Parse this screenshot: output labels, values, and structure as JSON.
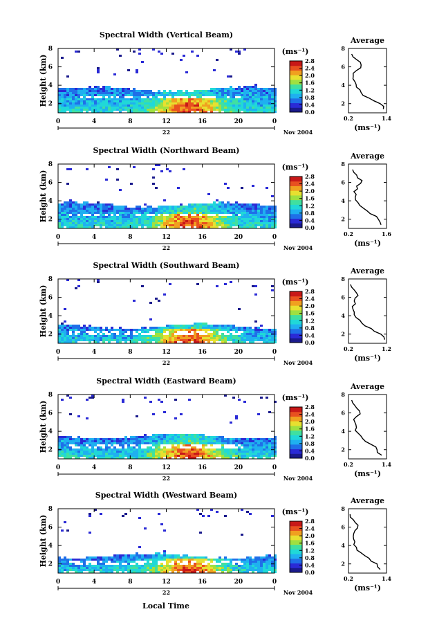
{
  "figure": {
    "xlabel": "Local Time",
    "date_label": "22",
    "month_label": "Nov 2004",
    "ylabel": "Height (km)",
    "colorbar_unit": "(ms⁻¹)",
    "colorbar_ticks": [
      "0.0",
      "0.4",
      "0.8",
      "1.2",
      "1.6",
      "2.0",
      "2.4",
      "2.8"
    ],
    "colormap": [
      "#1a1a8c",
      "#2a2ad6",
      "#1f6fe8",
      "#1fb0f0",
      "#20d8d8",
      "#40e0a0",
      "#a0e040",
      "#e8e030",
      "#f0a020",
      "#e85020",
      "#c81818"
    ],
    "profile_title": "Average",
    "profile_xlabel": "(ms⁻¹)"
  },
  "chart_data": [
    {
      "type": "heatmap",
      "title": "Spectral Width (Vertical Beam)",
      "xlabel": "Local Time",
      "ylabel": "Height (km)",
      "x_ticks": [
        "0",
        "4",
        "8",
        "12",
        "16",
        "20",
        "0"
      ],
      "xlim": [
        0,
        24
      ],
      "ylim": [
        1,
        8
      ],
      "y_ticks": [
        "2",
        "4",
        "6",
        "8"
      ],
      "colorbar_range": [
        0.0,
        2.8
      ],
      "profile": {
        "title": "Average",
        "xlim": [
          0.2,
          1.4
        ],
        "x_ticks": [
          "0.2",
          "1.4"
        ],
        "ylim": [
          1,
          8
        ],
        "y_ticks": [
          "2",
          "4",
          "6",
          "8"
        ],
        "heights": [
          1.4,
          2.0,
          2.6,
          3.2,
          3.8,
          4.4,
          5.0,
          5.6,
          6.2,
          6.8,
          7.4
        ],
        "values": [
          1.3,
          1.2,
          0.85,
          0.6,
          0.45,
          0.4,
          0.35,
          0.45,
          0.6,
          0.45,
          0.3
        ]
      }
    },
    {
      "type": "heatmap",
      "title": "Spectral Width (Northward Beam)",
      "xlabel": "Local Time",
      "ylabel": "Height (km)",
      "x_ticks": [
        "0",
        "4",
        "8",
        "12",
        "16",
        "20",
        "0"
      ],
      "xlim": [
        0,
        24
      ],
      "ylim": [
        1,
        8
      ],
      "y_ticks": [
        "2",
        "4",
        "6",
        "8"
      ],
      "colorbar_range": [
        0.0,
        2.8
      ],
      "profile": {
        "title": "Average",
        "xlim": [
          0.2,
          1.6
        ],
        "x_ticks": [
          "0.2",
          "1.6"
        ],
        "ylim": [
          1,
          8
        ],
        "y_ticks": [
          "2",
          "4",
          "6",
          "8"
        ],
        "heights": [
          1.4,
          2.0,
          2.6,
          3.2,
          3.8,
          4.4,
          5.0,
          5.6,
          6.2,
          6.8,
          7.4
        ],
        "values": [
          1.4,
          1.3,
          1.0,
          0.75,
          0.55,
          0.45,
          0.4,
          0.5,
          0.7,
          0.5,
          0.35
        ]
      }
    },
    {
      "type": "heatmap",
      "title": "Spectral Width (Southward Beam)",
      "xlabel": "Local Time",
      "ylabel": "Height (km)",
      "x_ticks": [
        "0",
        "4",
        "8",
        "12",
        "16",
        "20",
        "0"
      ],
      "xlim": [
        0,
        24
      ],
      "ylim": [
        1,
        8
      ],
      "y_ticks": [
        "2",
        "4",
        "6",
        "8"
      ],
      "colorbar_range": [
        0.0,
        2.8
      ],
      "profile": {
        "title": "Average",
        "xlim": [
          0.2,
          1.2
        ],
        "x_ticks": [
          "0.2",
          "1.2"
        ],
        "ylim": [
          1,
          8
        ],
        "y_ticks": [
          "2",
          "4",
          "6",
          "8"
        ],
        "heights": [
          1.4,
          2.0,
          2.6,
          3.2,
          3.8,
          4.4,
          5.0,
          5.6,
          6.2,
          6.8,
          7.4
        ],
        "values": [
          1.15,
          1.05,
          0.8,
          0.55,
          0.4,
          0.35,
          0.3,
          0.35,
          0.45,
          0.35,
          0.25
        ]
      }
    },
    {
      "type": "heatmap",
      "title": "Spectral Width (Eastward Beam)",
      "xlabel": "Local Time",
      "ylabel": "Height (km)",
      "x_ticks": [
        "0",
        "4",
        "8",
        "12",
        "16",
        "20",
        "0"
      ],
      "xlim": [
        0,
        24
      ],
      "ylim": [
        1,
        8
      ],
      "y_ticks": [
        "2",
        "4",
        "6",
        "8"
      ],
      "colorbar_range": [
        0.0,
        2.8
      ],
      "profile": {
        "title": "Average",
        "xlim": [
          0.2,
          1.4
        ],
        "x_ticks": [
          "0.2",
          "1.4"
        ],
        "ylim": [
          1,
          8
        ],
        "y_ticks": [
          "2",
          "4",
          "6",
          "8"
        ],
        "heights": [
          1.4,
          2.0,
          2.6,
          3.2,
          3.8,
          4.4,
          5.0,
          5.6,
          6.2,
          6.8,
          7.4
        ],
        "values": [
          1.25,
          1.1,
          0.9,
          0.65,
          0.5,
          0.45,
          0.4,
          0.45,
          0.55,
          0.4,
          0.3
        ]
      }
    },
    {
      "type": "heatmap",
      "title": "Spectral Width (Westward Beam)",
      "xlabel": "Local Time",
      "ylabel": "Height (km)",
      "x_ticks": [
        "0",
        "4",
        "8",
        "12",
        "16",
        "20",
        "0"
      ],
      "xlim": [
        0,
        24
      ],
      "ylim": [
        1,
        8
      ],
      "y_ticks": [
        "2",
        "4",
        "6",
        "8"
      ],
      "colorbar_range": [
        0.0,
        2.8
      ],
      "profile": {
        "title": "Average",
        "xlim": [
          0.2,
          1.4
        ],
        "x_ticks": [
          "0.2",
          "1.4"
        ],
        "ylim": [
          1,
          8
        ],
        "y_ticks": [
          "2",
          "4",
          "6",
          "8"
        ],
        "heights": [
          1.4,
          2.0,
          2.6,
          3.2,
          3.8,
          4.4,
          5.0,
          5.6,
          6.2,
          6.8,
          7.4
        ],
        "values": [
          1.2,
          1.1,
          0.85,
          0.6,
          0.45,
          0.4,
          0.35,
          0.4,
          0.5,
          0.35,
          0.25
        ]
      }
    }
  ]
}
